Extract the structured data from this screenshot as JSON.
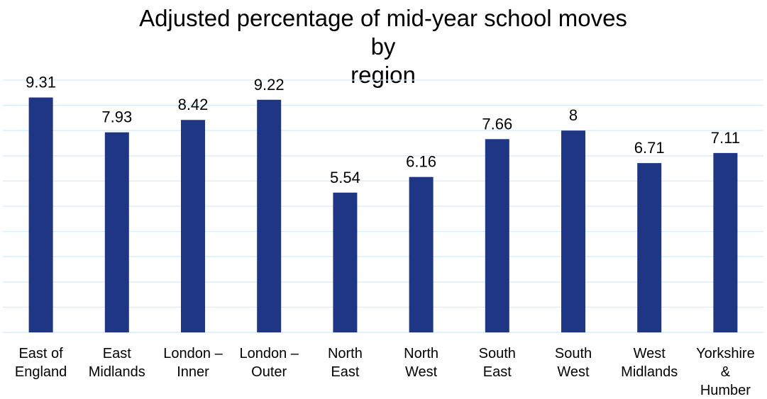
{
  "chart_data": {
    "type": "bar",
    "title_lines": [
      "Adjusted percentage of mid-year school moves by",
      "region"
    ],
    "categories": [
      [
        "East of",
        "England"
      ],
      [
        "East",
        "Midlands"
      ],
      [
        "London –",
        "Inner"
      ],
      [
        "London –",
        "Outer"
      ],
      [
        "North",
        "East"
      ],
      [
        "North",
        "West"
      ],
      [
        "South",
        "East"
      ],
      [
        "South",
        "West"
      ],
      [
        "West",
        "Midlands"
      ],
      [
        "Yorkshire",
        "&",
        "Humber"
      ]
    ],
    "values": [
      9.31,
      7.93,
      8.42,
      9.22,
      5.54,
      6.16,
      7.66,
      8,
      6.71,
      7.11
    ],
    "data_labels": [
      "9.31",
      "7.93",
      "8.42",
      "9.22",
      "5.54",
      "6.16",
      "7.66",
      "8",
      "6.71",
      "7.11"
    ],
    "ylim": [
      0,
      10
    ],
    "gridlines": true,
    "grid_step": 1,
    "y_axis_labels_shown": false,
    "legend": "none",
    "colors": {
      "bar": "#1F3685",
      "grid": "#D6EEF8",
      "axis": "#D6EEF8",
      "text": "#000000"
    }
  }
}
